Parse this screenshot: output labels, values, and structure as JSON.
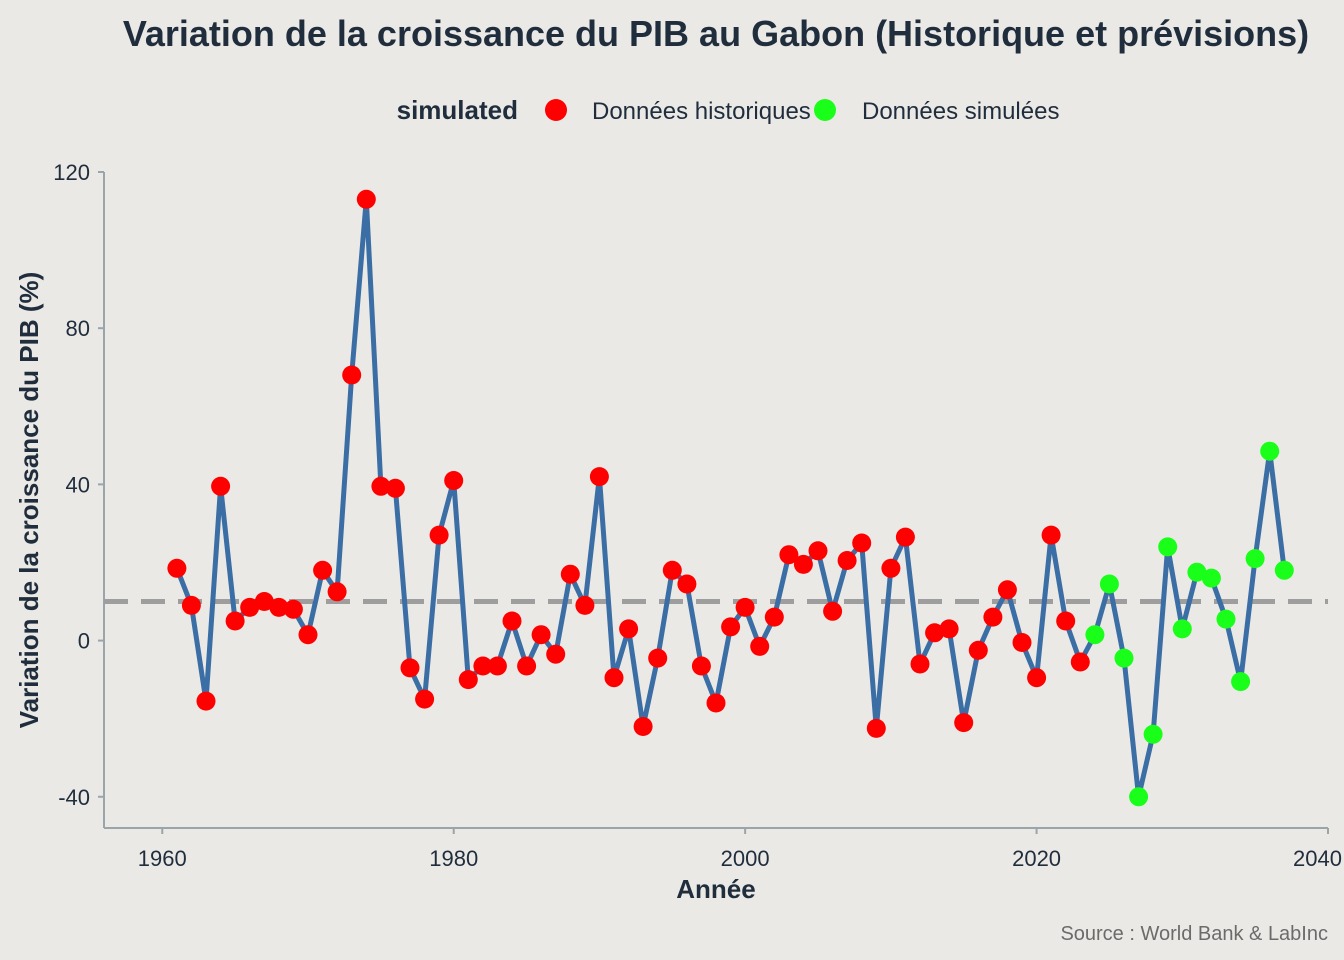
{
  "chart_data": {
    "type": "line",
    "title": "Variation de la croissance du PIB au Gabon (Historique et prévisions)",
    "xlabel": "Année",
    "ylabel": "Variation de la croissance du PIB (%)",
    "caption": "Source : World Bank & LabInc",
    "xlim": [
      1956,
      2040
    ],
    "ylim": [
      -48,
      120
    ],
    "x_ticks": [
      1960,
      1980,
      2000,
      2020,
      2040
    ],
    "y_ticks": [
      -40,
      0,
      40,
      80,
      120
    ],
    "reference_line": {
      "y": 10,
      "style": "dashed",
      "color": "#9e9e9e"
    },
    "line_color": "#3a6ea5",
    "grid": false,
    "legend": {
      "title": "simulated",
      "position": "top",
      "entries": [
        {
          "label": "Données historiques",
          "color": "#ff0000"
        },
        {
          "label": "Données simulées",
          "color": "#1aff1a"
        }
      ]
    },
    "series": [
      {
        "name": "Données historiques",
        "color": "#ff0000",
        "points": [
          [
            1961,
            18.5
          ],
          [
            1962,
            9
          ],
          [
            1963,
            -15.5
          ],
          [
            1964,
            39.5
          ],
          [
            1965,
            5
          ],
          [
            1966,
            8.5
          ],
          [
            1967,
            10
          ],
          [
            1968,
            8.5
          ],
          [
            1969,
            8
          ],
          [
            1970,
            1.5
          ],
          [
            1971,
            18
          ],
          [
            1972,
            12.5
          ],
          [
            1973,
            68
          ],
          [
            1974,
            113
          ],
          [
            1975,
            39.5
          ],
          [
            1976,
            39
          ],
          [
            1977,
            -7
          ],
          [
            1978,
            -15
          ],
          [
            1979,
            27
          ],
          [
            1980,
            41
          ],
          [
            1981,
            -10
          ],
          [
            1982,
            -6.5
          ],
          [
            1983,
            -6.5
          ],
          [
            1984,
            5
          ],
          [
            1985,
            -6.5
          ],
          [
            1986,
            1.5
          ],
          [
            1987,
            -3.5
          ],
          [
            1988,
            17
          ],
          [
            1989,
            9
          ],
          [
            1990,
            42
          ],
          [
            1991,
            -9.5
          ],
          [
            1992,
            3
          ],
          [
            1993,
            -22
          ],
          [
            1994,
            -4.5
          ],
          [
            1995,
            18
          ],
          [
            1996,
            14.5
          ],
          [
            1997,
            -6.5
          ],
          [
            1998,
            -16
          ],
          [
            1999,
            3.5
          ],
          [
            2000,
            8.5
          ],
          [
            2001,
            -1.5
          ],
          [
            2002,
            6
          ],
          [
            2003,
            22
          ],
          [
            2004,
            19.5
          ],
          [
            2005,
            23
          ],
          [
            2006,
            7.5
          ],
          [
            2007,
            20.5
          ],
          [
            2008,
            25
          ],
          [
            2009,
            -22.5
          ],
          [
            2010,
            18.5
          ],
          [
            2011,
            26.5
          ],
          [
            2012,
            -6
          ],
          [
            2013,
            2
          ],
          [
            2014,
            3
          ],
          [
            2015,
            -21
          ],
          [
            2016,
            -2.5
          ],
          [
            2017,
            6
          ],
          [
            2018,
            13
          ],
          [
            2019,
            -0.5
          ],
          [
            2020,
            -9.5
          ],
          [
            2021,
            27
          ],
          [
            2022,
            5
          ],
          [
            2023,
            -5.5
          ]
        ]
      },
      {
        "name": "Données simulées",
        "color": "#1aff1a",
        "points": [
          [
            2024,
            1.5
          ],
          [
            2025,
            14.5
          ],
          [
            2026,
            -4.5
          ],
          [
            2027,
            -40
          ],
          [
            2028,
            -24
          ],
          [
            2029,
            24
          ],
          [
            2030,
            3
          ],
          [
            2031,
            17.5
          ],
          [
            2032,
            16
          ],
          [
            2033,
            5.5
          ],
          [
            2034,
            -10.5
          ],
          [
            2035,
            21
          ],
          [
            2036,
            48.5
          ],
          [
            2037,
            18
          ]
        ]
      }
    ]
  }
}
